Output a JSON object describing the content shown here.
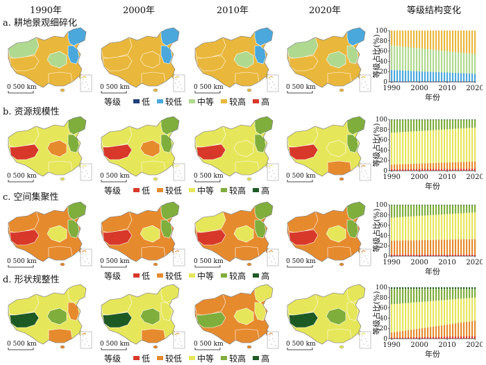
{
  "header": {
    "years": [
      "1990年",
      "2000年",
      "2010年",
      "2020年"
    ],
    "trend_title": "等级结构变化"
  },
  "scale_label": "0 500 km",
  "chart_axis": {
    "ylabel": "等级占比(%)",
    "xlabel": "年份",
    "yticks": [
      "0",
      "20",
      "40",
      "60",
      "80",
      "100"
    ],
    "xticks": [
      "1990",
      "2000",
      "2010",
      "2020"
    ]
  },
  "panels": [
    {
      "key": "a",
      "title": "a. 耕地景观细碎化",
      "legend_title": "等级",
      "legend": [
        {
          "label": "低",
          "color": "#1f3f7a"
        },
        {
          "label": "较低",
          "color": "#4aa8dc"
        },
        {
          "label": "中等",
          "color": "#b0d990"
        },
        {
          "label": "较高",
          "color": "#e9b73b"
        },
        {
          "label": "高",
          "color": "#d7382a"
        }
      ],
      "map_colors": [
        {
          "base": "#e9b73b",
          "west": "#b0d990",
          "tibet": "#e9b73b",
          "ne": "#4aa8dc",
          "east": "#4aa8dc",
          "center": "#b0d990",
          "south": "#e9b73b"
        },
        {
          "base": "#e9b73b",
          "west": "#e9b73b",
          "tibet": "#e9b73b",
          "ne": "#4aa8dc",
          "east": "#4aa8dc",
          "center": "#e9b73b",
          "south": "#e9b73b"
        },
        {
          "base": "#e9b73b",
          "west": "#e9b73b",
          "tibet": "#e9b73b",
          "ne": "#4aa8dc",
          "east": "#4aa8dc",
          "center": "#b0d990",
          "south": "#e9b73b"
        },
        {
          "base": "#e9b73b",
          "west": "#b0d990",
          "tibet": "#e9b73b",
          "ne": "#4aa8dc",
          "east": "#b0d990",
          "center": "#b0d990",
          "south": "#e9b73b"
        }
      ],
      "chart_data": {
        "type": "bar",
        "stacked": true,
        "x": {
          "start": 1990,
          "end": 2020
        },
        "ylim": [
          0,
          100
        ],
        "series": [
          {
            "color": "#1f3f7a",
            "start": 1,
            "end": 1
          },
          {
            "color": "#4aa8dc",
            "start": 22,
            "end": 15
          },
          {
            "color": "#b0d990",
            "start": 48,
            "end": 38
          },
          {
            "color": "#e9b73b",
            "start": 29,
            "end": 46
          },
          {
            "color": "#d7382a",
            "start": 0,
            "end": 0
          }
        ]
      }
    },
    {
      "key": "b",
      "title": "b. 资源规模性",
      "legend_title": "等级",
      "legend": [
        {
          "label": "低",
          "color": "#d7382a"
        },
        {
          "label": "较低",
          "color": "#e68a2e"
        },
        {
          "label": "中等",
          "color": "#e6e65a"
        },
        {
          "label": "较高",
          "color": "#7fae3c"
        },
        {
          "label": "高",
          "color": "#1e5a24"
        }
      ],
      "map_colors": [
        {
          "base": "#e6e65a",
          "west": "#e6e65a",
          "tibet": "#d7382a",
          "ne": "#7fae3c",
          "east": "#7fae3c",
          "center": "#e68a2e",
          "south": "#e6e65a"
        },
        {
          "base": "#e6e65a",
          "west": "#e6e65a",
          "tibet": "#d7382a",
          "ne": "#7fae3c",
          "east": "#7fae3c",
          "center": "#e68a2e",
          "south": "#e6e65a"
        },
        {
          "base": "#e6e65a",
          "west": "#e6e65a",
          "tibet": "#d7382a",
          "ne": "#7fae3c",
          "east": "#7fae3c",
          "center": "#e6e65a",
          "south": "#e6e65a"
        },
        {
          "base": "#e6e65a",
          "west": "#e6e65a",
          "tibet": "#d7382a",
          "ne": "#7fae3c",
          "east": "#7fae3c",
          "center": "#e6e65a",
          "south": "#e68a2e"
        }
      ],
      "chart_data": {
        "type": "bar",
        "stacked": true,
        "x": {
          "start": 1990,
          "end": 2020
        },
        "ylim": [
          0,
          100
        ],
        "series": [
          {
            "color": "#d7382a",
            "start": 3,
            "end": 4
          },
          {
            "color": "#e68a2e",
            "start": 9,
            "end": 14
          },
          {
            "color": "#e6e65a",
            "start": 62,
            "end": 66
          },
          {
            "color": "#7fae3c",
            "start": 25,
            "end": 15
          },
          {
            "color": "#1e5a24",
            "start": 1,
            "end": 1
          }
        ]
      }
    },
    {
      "key": "c",
      "title": "c. 空间集聚性",
      "legend_title": "等级",
      "legend": [
        {
          "label": "低",
          "color": "#d7382a"
        },
        {
          "label": "较低",
          "color": "#e68a2e"
        },
        {
          "label": "中等",
          "color": "#e6e65a"
        },
        {
          "label": "较高",
          "color": "#7fae3c"
        },
        {
          "label": "高",
          "color": "#1e5a24"
        }
      ],
      "map_colors": [
        {
          "base": "#e68a2e",
          "west": "#e68a2e",
          "tibet": "#d7382a",
          "ne": "#7fae3c",
          "east": "#7fae3c",
          "center": "#e6e65a",
          "south": "#e68a2e"
        },
        {
          "base": "#e68a2e",
          "west": "#e68a2e",
          "tibet": "#d7382a",
          "ne": "#7fae3c",
          "east": "#7fae3c",
          "center": "#e6e65a",
          "south": "#e68a2e"
        },
        {
          "base": "#e68a2e",
          "west": "#e6e65a",
          "tibet": "#d7382a",
          "ne": "#7fae3c",
          "east": "#7fae3c",
          "center": "#e6e65a",
          "south": "#e68a2e"
        },
        {
          "base": "#e68a2e",
          "west": "#e68a2e",
          "tibet": "#d7382a",
          "ne": "#7fae3c",
          "east": "#7fae3c",
          "center": "#e6e65a",
          "south": "#e68a2e"
        }
      ],
      "chart_data": {
        "type": "bar",
        "stacked": true,
        "x": {
          "start": 1990,
          "end": 2020
        },
        "ylim": [
          0,
          100
        ],
        "series": [
          {
            "color": "#d7382a",
            "start": 3,
            "end": 3
          },
          {
            "color": "#e68a2e",
            "start": 27,
            "end": 30
          },
          {
            "color": "#e6e65a",
            "start": 45,
            "end": 52
          },
          {
            "color": "#7fae3c",
            "start": 24,
            "end": 14
          },
          {
            "color": "#1e5a24",
            "start": 1,
            "end": 1
          }
        ]
      }
    },
    {
      "key": "d",
      "title": "d. 形状规整性",
      "legend_title": "等级",
      "legend": [
        {
          "label": "低",
          "color": "#d7382a"
        },
        {
          "label": "较低",
          "color": "#e68a2e"
        },
        {
          "label": "中等",
          "color": "#e6e65a"
        },
        {
          "label": "较高",
          "color": "#7fae3c"
        },
        {
          "label": "高",
          "color": "#1e5a24"
        }
      ],
      "map_colors": [
        {
          "base": "#e6e65a",
          "west": "#e6e65a",
          "tibet": "#1e5a24",
          "ne": "#e6e65a",
          "east": "#e68a2e",
          "center": "#7fae3c",
          "south": "#e68a2e"
        },
        {
          "base": "#e6e65a",
          "west": "#e6e65a",
          "tibet": "#1e5a24",
          "ne": "#e6e65a",
          "east": "#e6e65a",
          "center": "#7fae3c",
          "south": "#e68a2e"
        },
        {
          "base": "#e68a2e",
          "west": "#e68a2e",
          "tibet": "#7fae3c",
          "ne": "#e6e65a",
          "east": "#e6e65a",
          "center": "#e6e65a",
          "south": "#e68a2e"
        },
        {
          "base": "#e6e65a",
          "west": "#e6e65a",
          "tibet": "#1e5a24",
          "ne": "#e6e65a",
          "east": "#e6e65a",
          "center": "#7fae3c",
          "south": "#e6e65a"
        }
      ],
      "chart_data": {
        "type": "bar",
        "stacked": true,
        "x": {
          "start": 1990,
          "end": 2020
        },
        "ylim": [
          0,
          100
        ],
        "series": [
          {
            "color": "#d7382a",
            "start": 2,
            "end": 5
          },
          {
            "color": "#e68a2e",
            "start": 10,
            "end": 30
          },
          {
            "color": "#e6e65a",
            "start": 55,
            "end": 45
          },
          {
            "color": "#7fae3c",
            "start": 30,
            "end": 17
          },
          {
            "color": "#1e5a24",
            "start": 3,
            "end": 3
          }
        ]
      }
    }
  ]
}
